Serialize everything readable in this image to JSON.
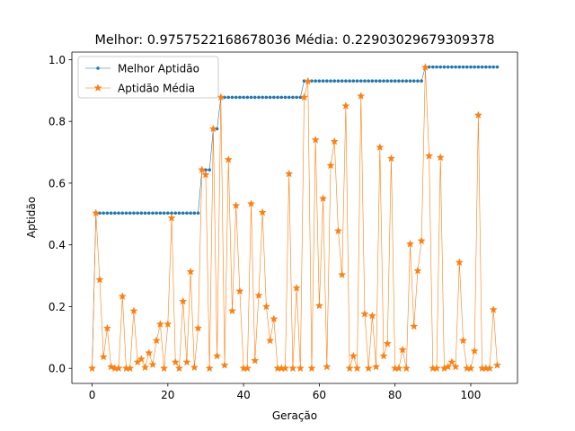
{
  "chart_data": {
    "type": "line",
    "title": "Melhor: 0.9757522168678036 Média: 0.22903029679309378",
    "xlabel": "Geração",
    "ylabel": "Aptidão",
    "xlim": [
      -5.35,
      112.35
    ],
    "ylim": [
      -0.0488,
      1.0245
    ],
    "xticks": [
      0,
      20,
      40,
      60,
      80,
      100
    ],
    "xtick_labels": [
      "0",
      "20",
      "40",
      "60",
      "80",
      "100"
    ],
    "yticks": [
      0.0,
      0.2,
      0.4,
      0.6,
      0.8,
      1.0
    ],
    "ytick_labels": [
      "0.0",
      "0.2",
      "0.4",
      "0.6",
      "0.8",
      "1.0"
    ],
    "grid": false,
    "legend_position": "upper-left",
    "x": [
      0,
      1,
      2,
      3,
      4,
      5,
      6,
      7,
      8,
      9,
      10,
      11,
      12,
      13,
      14,
      15,
      16,
      17,
      18,
      19,
      20,
      21,
      22,
      23,
      24,
      25,
      26,
      27,
      28,
      29,
      30,
      31,
      32,
      33,
      34,
      35,
      36,
      37,
      38,
      39,
      40,
      41,
      42,
      43,
      44,
      45,
      46,
      47,
      48,
      49,
      50,
      51,
      52,
      53,
      54,
      55,
      56,
      57,
      58,
      59,
      60,
      61,
      62,
      63,
      64,
      65,
      66,
      67,
      68,
      69,
      70,
      71,
      72,
      73,
      74,
      75,
      76,
      77,
      78,
      79,
      80,
      81,
      82,
      83,
      84,
      85,
      86,
      87,
      88,
      89,
      90,
      91,
      92,
      93,
      94,
      95,
      96,
      97,
      98,
      99,
      100,
      101,
      102,
      103,
      104,
      105,
      106,
      107
    ],
    "series": [
      {
        "name": "Melhor Aptidão",
        "color": "#1f77b4",
        "marker": "circle",
        "values": [
          0.0,
          0.503,
          0.503,
          0.503,
          0.503,
          0.503,
          0.503,
          0.503,
          0.503,
          0.503,
          0.503,
          0.503,
          0.503,
          0.503,
          0.503,
          0.503,
          0.503,
          0.503,
          0.503,
          0.503,
          0.503,
          0.503,
          0.503,
          0.503,
          0.503,
          0.503,
          0.503,
          0.503,
          0.503,
          0.643,
          0.643,
          0.643,
          0.776,
          0.776,
          0.878,
          0.878,
          0.878,
          0.878,
          0.878,
          0.878,
          0.878,
          0.878,
          0.878,
          0.878,
          0.878,
          0.878,
          0.878,
          0.878,
          0.878,
          0.878,
          0.878,
          0.878,
          0.878,
          0.878,
          0.878,
          0.878,
          0.931,
          0.931,
          0.931,
          0.931,
          0.931,
          0.931,
          0.931,
          0.931,
          0.931,
          0.931,
          0.931,
          0.931,
          0.931,
          0.931,
          0.931,
          0.931,
          0.931,
          0.931,
          0.931,
          0.931,
          0.931,
          0.931,
          0.931,
          0.931,
          0.931,
          0.931,
          0.931,
          0.931,
          0.931,
          0.931,
          0.931,
          0.931,
          0.976,
          0.976,
          0.976,
          0.976,
          0.976,
          0.976,
          0.976,
          0.976,
          0.976,
          0.976,
          0.976,
          0.976,
          0.976,
          0.976,
          0.976,
          0.976,
          0.976,
          0.976,
          0.976,
          0.976
        ]
      },
      {
        "name": "Aptidão Média",
        "color": "#ff7f0e",
        "marker": "star",
        "values": [
          0.0,
          0.503,
          0.287,
          0.037,
          0.13,
          0.005,
          0.0,
          0.0,
          0.233,
          0.0,
          0.0,
          0.186,
          0.02,
          0.03,
          0.003,
          0.05,
          0.012,
          0.09,
          0.143,
          0.0,
          0.143,
          0.487,
          0.02,
          0.0,
          0.217,
          0.02,
          0.313,
          0.003,
          0.13,
          0.643,
          0.627,
          0.0,
          0.776,
          0.04,
          0.878,
          0.01,
          0.676,
          0.186,
          0.527,
          0.25,
          0.0,
          0.0,
          0.533,
          0.025,
          0.236,
          0.505,
          0.2,
          0.09,
          0.16,
          0.0,
          0.0,
          0.0,
          0.63,
          0.0,
          0.26,
          0.0,
          0.878,
          0.93,
          0.0,
          0.74,
          0.203,
          0.55,
          0.005,
          0.657,
          0.735,
          0.445,
          0.303,
          0.85,
          0.0,
          0.04,
          0.0,
          0.882,
          0.176,
          0.0,
          0.17,
          0.005,
          0.716,
          0.04,
          0.08,
          0.68,
          0.0,
          0.0,
          0.06,
          0.0,
          0.403,
          0.136,
          0.316,
          0.413,
          0.975,
          0.688,
          0.0,
          0.0,
          0.683,
          0.0,
          0.005,
          0.02,
          0.005,
          0.343,
          0.09,
          0.0,
          0.0,
          0.056,
          0.82,
          0.0,
          0.0,
          0.0,
          0.19,
          0.01
        ]
      }
    ]
  }
}
